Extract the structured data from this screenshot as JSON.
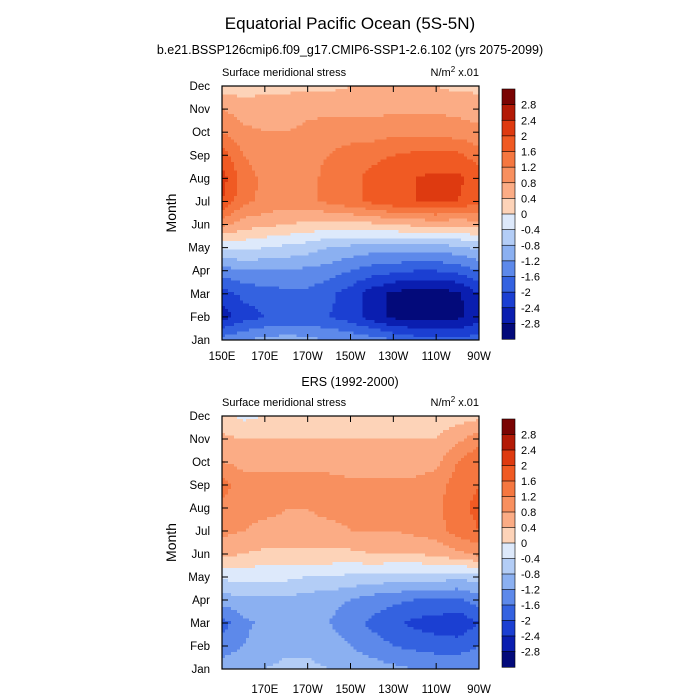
{
  "title": "Equatorial Pacific Ocean (5S-5N)",
  "colorbar": {
    "labels": [
      "2.8",
      "2.4",
      "2",
      "1.6",
      "1.2",
      "0.8",
      "0.4",
      "0",
      "-0.4",
      "-0.8",
      "-1.2",
      "-1.6",
      "-2",
      "-2.4",
      "-2.8"
    ],
    "colors": [
      "#7a0403",
      "#b31a06",
      "#de3a10",
      "#f05a23",
      "#f57740",
      "#f8905f",
      "#fbac85",
      "#fdd3b8",
      "#dde9fb",
      "#b3cdf6",
      "#8bb0f1",
      "#5d89ea",
      "#3462e0",
      "#1b3fd2",
      "#0a1eb0",
      "#030a7a"
    ]
  },
  "chart_data": [
    {
      "type": "heatmap",
      "subtitle": "b.e21.BSSP126cmip6.f09_g17.CMIP6-SSP1-2.6.102 (yrs 2075-2099)",
      "left_label": "Surface meridional stress",
      "right_label_base": "N/m",
      "right_label_sup": "2",
      "right_label_tail": " x.01",
      "ylabel": "Month",
      "x_ticks": [
        "150E",
        "170E",
        "170W",
        "150W",
        "130W",
        "110W",
        "90W"
      ],
      "y_ticks": [
        "Jan",
        "Feb",
        "Mar",
        "Apr",
        "May",
        "Jun",
        "Jul",
        "Aug",
        "Sep",
        "Oct",
        "Nov",
        "Dec"
      ],
      "xlim": [
        150,
        270
      ],
      "months": [
        "Jan",
        "Feb",
        "Mar",
        "Apr",
        "May",
        "Jun",
        "Jul",
        "Aug",
        "Sep",
        "Oct",
        "Nov",
        "Dec"
      ],
      "lon": [
        150,
        160,
        170,
        180,
        190,
        200,
        210,
        220,
        230,
        240,
        250,
        260,
        270
      ],
      "values": [
        [
          -1.4,
          -1.2,
          -1.1,
          -1.0,
          -1.1,
          -1.2,
          -1.3,
          -1.4,
          -1.6,
          -1.8,
          -1.9,
          -1.9,
          -1.8
        ],
        [
          -2.6,
          -2.2,
          -2.0,
          -1.9,
          -1.9,
          -2.0,
          -2.2,
          -2.6,
          -2.9,
          -3.0,
          -3.0,
          -2.9,
          -2.6
        ],
        [
          -2.2,
          -1.9,
          -1.8,
          -1.7,
          -1.7,
          -1.9,
          -2.2,
          -2.6,
          -2.9,
          -3.0,
          -3.0,
          -2.9,
          -2.4
        ],
        [
          -1.4,
          -1.2,
          -1.2,
          -1.2,
          -1.3,
          -1.4,
          -1.6,
          -1.8,
          -1.9,
          -2.0,
          -2.0,
          -1.9,
          -1.6
        ],
        [
          -0.3,
          -0.3,
          -0.4,
          -0.5,
          -0.6,
          -0.8,
          -0.9,
          -1.0,
          -1.0,
          -1.0,
          -1.0,
          -0.9,
          -0.7
        ],
        [
          0.9,
          0.6,
          0.5,
          0.4,
          0.3,
          0.2,
          0.2,
          0.3,
          0.4,
          0.5,
          0.5,
          0.5,
          0.6
        ],
        [
          2.0,
          1.3,
          1.1,
          1.0,
          1.1,
          1.3,
          1.5,
          1.7,
          1.9,
          2.0,
          2.1,
          2.0,
          1.7
        ],
        [
          2.2,
          1.4,
          1.1,
          1.0,
          1.1,
          1.3,
          1.5,
          1.7,
          1.9,
          2.0,
          2.1,
          2.1,
          1.8
        ],
        [
          1.8,
          1.2,
          1.0,
          1.0,
          1.1,
          1.2,
          1.4,
          1.5,
          1.6,
          1.7,
          1.7,
          1.7,
          1.4
        ],
        [
          1.2,
          0.9,
          0.8,
          0.8,
          0.9,
          1.0,
          1.0,
          1.0,
          1.1,
          1.1,
          1.1,
          1.0,
          0.9
        ],
        [
          0.8,
          0.6,
          0.6,
          0.6,
          0.7,
          0.7,
          0.7,
          0.7,
          0.7,
          0.7,
          0.7,
          0.7,
          0.6
        ],
        [
          0.2,
          0.2,
          0.3,
          0.3,
          0.3,
          0.3,
          0.4,
          0.4,
          0.4,
          0.4,
          0.4,
          0.3,
          0.3
        ]
      ]
    },
    {
      "type": "heatmap",
      "subtitle": "ERS (1992-2000)",
      "left_label": "Surface meridional stress",
      "right_label_base": "N/m",
      "right_label_sup": "2",
      "right_label_tail": " x.01",
      "ylabel": "Month",
      "x_ticks": [
        "170E",
        "170W",
        "150W",
        "130W",
        "110W",
        "90W"
      ],
      "y_ticks": [
        "Jan",
        "Feb",
        "Mar",
        "Apr",
        "May",
        "Jun",
        "Jul",
        "Aug",
        "Sep",
        "Oct",
        "Nov",
        "Dec"
      ],
      "xlim": [
        150,
        270
      ],
      "months": [
        "Jan",
        "Feb",
        "Mar",
        "Apr",
        "May",
        "Jun",
        "Jul",
        "Aug",
        "Sep",
        "Oct",
        "Nov",
        "Dec"
      ],
      "lon": [
        150,
        160,
        170,
        180,
        190,
        200,
        210,
        220,
        230,
        240,
        250,
        260,
        270
      ],
      "values": [
        [
          -1.0,
          -0.9,
          -0.8,
          -0.7,
          -0.7,
          -0.8,
          -0.9,
          -1.0,
          -1.1,
          -1.2,
          -1.2,
          -1.3,
          -1.2
        ],
        [
          -1.4,
          -1.2,
          -1.0,
          -0.9,
          -0.9,
          -1.0,
          -1.2,
          -1.4,
          -1.6,
          -1.7,
          -1.8,
          -1.8,
          -1.6
        ],
        [
          -1.8,
          -1.3,
          -1.1,
          -1.0,
          -1.1,
          -1.2,
          -1.4,
          -1.7,
          -1.9,
          -2.1,
          -2.2,
          -2.3,
          -2.0
        ],
        [
          -1.0,
          -0.9,
          -0.9,
          -0.9,
          -1.0,
          -1.1,
          -1.2,
          -1.4,
          -1.5,
          -1.6,
          -1.6,
          -1.7,
          -1.4
        ],
        [
          -0.3,
          -0.3,
          -0.3,
          -0.3,
          -0.4,
          -0.4,
          -0.5,
          -0.5,
          -0.6,
          -0.6,
          -0.6,
          -0.7,
          -0.6
        ],
        [
          0.5,
          0.4,
          0.3,
          0.3,
          0.3,
          0.3,
          0.3,
          0.4,
          0.4,
          0.4,
          0.5,
          0.7,
          0.9
        ],
        [
          0.9,
          0.8,
          0.7,
          0.7,
          0.7,
          0.7,
          0.8,
          0.8,
          0.8,
          0.9,
          1.0,
          1.4,
          1.6
        ],
        [
          1.1,
          0.9,
          0.9,
          0.8,
          0.8,
          0.9,
          0.9,
          0.9,
          0.9,
          1.0,
          1.1,
          1.5,
          1.7
        ],
        [
          1.4,
          0.9,
          0.9,
          0.9,
          0.9,
          0.9,
          0.9,
          0.9,
          0.9,
          0.9,
          1.0,
          1.4,
          1.6
        ],
        [
          0.8,
          0.7,
          0.7,
          0.7,
          0.7,
          0.7,
          0.6,
          0.6,
          0.6,
          0.6,
          0.7,
          1.2,
          1.6
        ],
        [
          0.5,
          0.4,
          0.4,
          0.4,
          0.4,
          0.4,
          0.4,
          0.4,
          0.4,
          0.4,
          0.4,
          0.7,
          1.0
        ],
        [
          0.1,
          -0.1,
          0.0,
          0.1,
          0.1,
          0.1,
          0.2,
          0.2,
          0.2,
          0.2,
          0.2,
          0.2,
          0.3
        ]
      ]
    }
  ]
}
